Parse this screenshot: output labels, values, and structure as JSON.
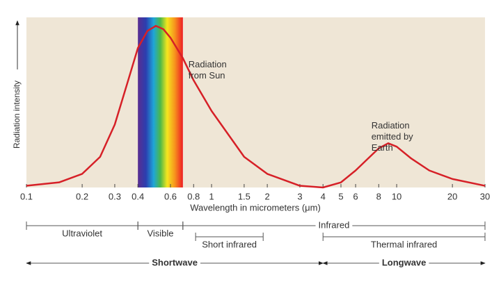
{
  "chart_data": {
    "type": "line",
    "y_label": "Radiation intensity",
    "x_label": "Wavelength in micrometers (μm)",
    "xscale": "log",
    "xlim": [
      0.1,
      30
    ],
    "ylim": [
      0,
      100
    ],
    "xticks": [
      0.1,
      0.2,
      0.3,
      0.4,
      0.6,
      0.8,
      1,
      1.5,
      2,
      3,
      4,
      5,
      6,
      8,
      10,
      20,
      30
    ],
    "x": [
      0.1,
      0.15,
      0.2,
      0.25,
      0.3,
      0.35,
      0.4,
      0.45,
      0.5,
      0.55,
      0.6,
      0.7,
      0.8,
      1,
      1.5,
      2,
      3,
      4,
      5,
      6,
      7,
      8,
      9,
      10,
      12,
      15,
      20,
      30
    ],
    "series": [
      {
        "color": "#d62027",
        "values": [
          1,
          3,
          8,
          18,
          37,
          61,
          82,
          92,
          95,
          93,
          88,
          76,
          63,
          45,
          18,
          8,
          1,
          0,
          3,
          10,
          17,
          23,
          26,
          24,
          17,
          10,
          5,
          1
        ]
      }
    ],
    "annotations": [
      {
        "lines": [
          "Radiation",
          "from Sun"
        ],
        "x": 0.75,
        "y": 72
      },
      {
        "lines": [
          "Radiation",
          "emitted by",
          "Earth"
        ],
        "x": 7.3,
        "y": 36
      }
    ],
    "ranges": [
      {
        "name": "Ultraviolet",
        "from": 0.1,
        "to": 0.4
      },
      {
        "name": "Visible",
        "from": 0.4,
        "to": 0.7
      },
      {
        "name": "Infrared",
        "from": 0.7,
        "to": 30
      }
    ],
    "sub_ranges": [
      {
        "name": "Short infrared",
        "from": 0.82,
        "to": 1.9
      },
      {
        "name": "Thermal infrared",
        "from": 4,
        "to": 30
      }
    ],
    "wave_types": [
      {
        "name": "Shortwave",
        "from": 0.1,
        "to": 4
      },
      {
        "name": "Longwave",
        "from": 4,
        "to": 30
      }
    ]
  }
}
